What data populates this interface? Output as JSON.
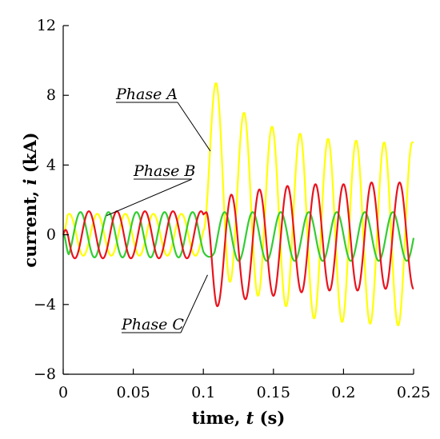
{
  "chart_data": {
    "type": "line",
    "title": "",
    "xlabel_parts": {
      "pre": "time, ",
      "var": "t",
      "post": " (s)"
    },
    "ylabel_parts": {
      "pre": "current, ",
      "var": "i",
      "post": " (kA)"
    },
    "xlim": [
      0,
      0.25
    ],
    "ylim": [
      -8,
      12
    ],
    "xticks": [
      0,
      0.05,
      0.1,
      0.15,
      0.2,
      0.25
    ],
    "xtick_labels": [
      "0",
      "0.05",
      "0.1",
      "0.15",
      "0.2",
      "0.25"
    ],
    "yticks": [
      -8,
      -4,
      0,
      4,
      8,
      12
    ],
    "ytick_labels": [
      "−8",
      "−4",
      "0",
      "4",
      "8",
      "12"
    ],
    "grid": false,
    "fault_time": 0.1,
    "frequency_hz": 50,
    "series": [
      {
        "name": "Phase A",
        "color": "#ffff00",
        "pre_fault_amplitude": 1.2,
        "post_fault_peaks": [
          {
            "t": 0.109,
            "value": 8.7
          },
          {
            "t": 0.119,
            "value": -2.7
          },
          {
            "t": 0.129,
            "value": 7.0
          },
          {
            "t": 0.139,
            "value": -3.5
          },
          {
            "t": 0.149,
            "value": 6.2
          },
          {
            "t": 0.159,
            "value": -4.1
          },
          {
            "t": 0.169,
            "value": 5.8
          },
          {
            "t": 0.179,
            "value": -4.8
          },
          {
            "t": 0.189,
            "value": 5.5
          },
          {
            "t": 0.199,
            "value": -5.0
          },
          {
            "t": 0.209,
            "value": 5.4
          },
          {
            "t": 0.219,
            "value": -5.1
          },
          {
            "t": 0.229,
            "value": 5.3
          },
          {
            "t": 0.239,
            "value": -5.2
          },
          {
            "t": 0.249,
            "value": 5.3
          }
        ]
      },
      {
        "name": "Phase B",
        "color": "#33cc33",
        "pre_fault_amplitude": 1.3,
        "post_fault_amplitude": 1.4,
        "post_fault_offset": -0.1
      },
      {
        "name": "Phase C",
        "color": "#e8141e",
        "pre_fault_amplitude": 1.35,
        "post_fault_peaks": [
          {
            "t": 0.102,
            "value": 1.3
          },
          {
            "t": 0.11,
            "value": -4.1
          },
          {
            "t": 0.12,
            "value": 2.3
          },
          {
            "t": 0.13,
            "value": -3.7
          },
          {
            "t": 0.14,
            "value": 2.6
          },
          {
            "t": 0.15,
            "value": -3.5
          },
          {
            "t": 0.16,
            "value": 2.8
          },
          {
            "t": 0.17,
            "value": -3.3
          },
          {
            "t": 0.18,
            "value": 2.9
          },
          {
            "t": 0.19,
            "value": -3.2
          },
          {
            "t": 0.2,
            "value": 2.9
          },
          {
            "t": 0.21,
            "value": -3.2
          },
          {
            "t": 0.22,
            "value": 3.0
          },
          {
            "t": 0.23,
            "value": -3.1
          },
          {
            "t": 0.24,
            "value": 3.0
          },
          {
            "t": 0.25,
            "value": -3.1
          }
        ]
      }
    ],
    "annotations": [
      {
        "text": "Phase A",
        "target_series": "Phase A",
        "target_t": 0.105,
        "target_value": 4.8
      },
      {
        "text": "Phase B",
        "target_series": "Phase B",
        "target_t": 0.031,
        "target_value": 1.1
      },
      {
        "text": "Phase C",
        "target_series": "Phase C",
        "target_t": 0.103,
        "target_value": -2.3
      }
    ]
  }
}
